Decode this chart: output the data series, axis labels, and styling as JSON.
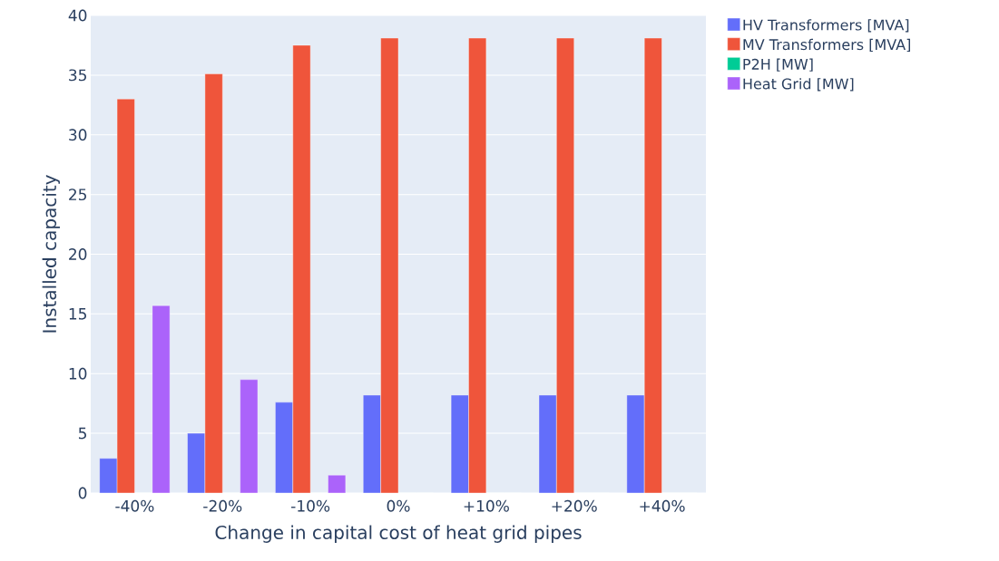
{
  "chart_data": {
    "type": "bar",
    "xlabel": "Change in capital cost of heat grid pipes",
    "ylabel": "Installed capacity",
    "categories": [
      "-40%",
      "-20%",
      "-10%",
      "0%",
      "+10%",
      "+20%",
      "+40%"
    ],
    "series": [
      {
        "name": "HV Transformers [MVA]",
        "color": "#636efa",
        "values": [
          2.9,
          5.0,
          7.6,
          8.2,
          8.2,
          8.2,
          8.2
        ]
      },
      {
        "name": "MV Transformers [MVA]",
        "color": "#ef553b",
        "values": [
          33.0,
          35.1,
          37.5,
          38.1,
          38.1,
          38.1,
          38.1
        ]
      },
      {
        "name": "P2H [MW]",
        "color": "#00cc96",
        "values": [
          0,
          0,
          0,
          0,
          0,
          0,
          0
        ]
      },
      {
        "name": "Heat Grid [MW]",
        "color": "#ab63fa",
        "values": [
          15.7,
          9.5,
          1.5,
          0,
          0,
          0,
          0
        ]
      }
    ],
    "ylim": [
      0,
      40
    ],
    "yticks": [
      0,
      5,
      10,
      15,
      20,
      25,
      30,
      35,
      40
    ],
    "grid": "y",
    "legend": "top right"
  }
}
